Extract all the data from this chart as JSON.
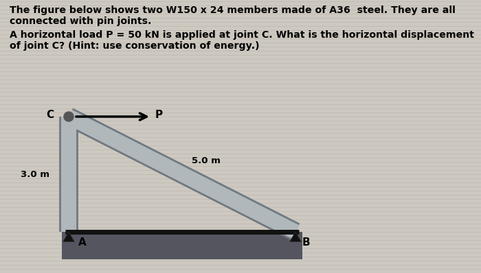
{
  "title_line1": "The figure below shows two W150 x 24 members made of A36  steel. They are all",
  "title_line2": "connected with pin joints.",
  "blank_line": "",
  "question_line1": "A horizontal load P = 50 kN is applied at joint C. What is the horizontal displacement",
  "question_line2": "of joint C? (Hint: use conservation of energy.)",
  "bg_color": "#cdc9c0",
  "text_color": "#000000",
  "joint_C": [
    0.18,
    3.0
  ],
  "joint_A": [
    0.18,
    0.0
  ],
  "joint_B": [
    4.18,
    0.0
  ],
  "label_C": "C",
  "label_A": "A",
  "label_B": "B",
  "label_P": "P",
  "label_3m": "3.0 m",
  "label_5m": "5.0 m",
  "member_color": "#b0b8bc",
  "member_lw": 16,
  "member_edge_lw": 18,
  "member_edge_color": "#707880",
  "ground_bar_color": "#111111",
  "ground_fill_color": "#555560",
  "arrow_color": "#000000",
  "pin_color": "#111111"
}
